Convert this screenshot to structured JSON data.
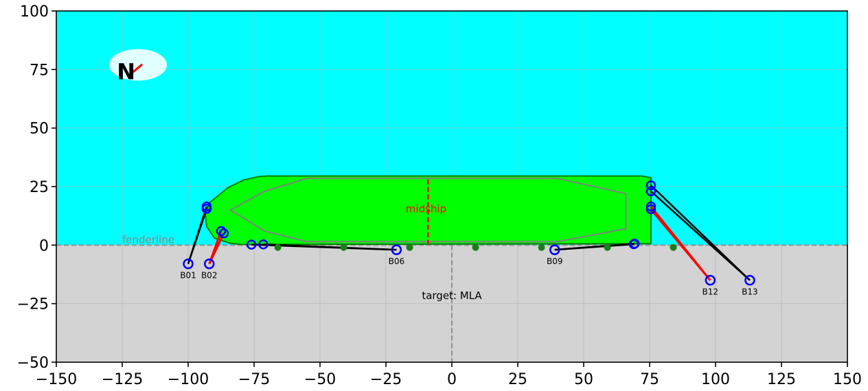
{
  "annotations": {
    "fenderline": "fenderline",
    "midship": "midship",
    "target": "target: MLA",
    "north": "N"
  },
  "colors": {
    "water": "#00ffff",
    "quay": "#d3d3d3",
    "hull": "#00ff00",
    "hull_edge": "#008000",
    "deck_outline": "#808080",
    "midship": "#ff0000",
    "line_black": "#000000",
    "line_red": "#ff0000",
    "bollard_ring": "#0000ff",
    "fender": "#1a7f1a",
    "north_ellipse": "#e0ffff",
    "north_arrow": "#ff0000"
  },
  "chart_data": {
    "type": "scatter",
    "xlim": [
      -150,
      150
    ],
    "ylim": [
      -50,
      100
    ],
    "xticks": [
      -150,
      -125,
      -100,
      -75,
      -50,
      -25,
      0,
      25,
      50,
      75,
      100,
      125,
      150
    ],
    "yticks": [
      -50,
      -25,
      0,
      25,
      50,
      75,
      100
    ],
    "grid": true,
    "fenderline_y": 0,
    "target_x": 0,
    "midship_x": -9,
    "hull_outline": [
      [
        -70,
        29.5
      ],
      [
        72,
        29.5
      ],
      [
        75.5,
        28.8
      ],
      [
        75.5,
        0.6
      ],
      [
        65,
        0.6
      ],
      [
        -80,
        0.3
      ],
      [
        -84,
        0.8
      ],
      [
        -90,
        3
      ],
      [
        -93,
        8
      ],
      [
        -93.5,
        13
      ],
      [
        -92,
        18
      ],
      [
        -85,
        24.5
      ],
      [
        -79,
        27.8
      ],
      [
        -73,
        29.3
      ]
    ],
    "deck_outline": [
      [
        -55,
        28.5
      ],
      [
        40,
        28.5
      ],
      [
        66,
        22
      ],
      [
        66,
        7
      ],
      [
        40,
        1.5
      ],
      [
        -55,
        1.5
      ],
      [
        -71,
        6
      ],
      [
        -84,
        15
      ],
      [
        -71,
        23
      ]
    ],
    "fenders": [
      {
        "x": -66,
        "y": -1
      },
      {
        "x": -41,
        "y": -1
      },
      {
        "x": -16,
        "y": -1
      },
      {
        "x": 9,
        "y": -1
      },
      {
        "x": 34,
        "y": -1
      },
      {
        "x": 59,
        "y": -1
      },
      {
        "x": 84,
        "y": -1
      }
    ],
    "bollards": [
      {
        "label": "B01",
        "x": -100,
        "y": -8
      },
      {
        "label": "B02",
        "x": -92,
        "y": -8
      },
      {
        "label": "B06",
        "x": -21,
        "y": -2
      },
      {
        "label": "B09",
        "x": 39,
        "y": -2
      },
      {
        "label": "B12",
        "x": 98,
        "y": -15
      },
      {
        "label": "B13",
        "x": 113,
        "y": -15
      }
    ],
    "fairleads": [
      {
        "x": -93,
        "y": 16.5
      },
      {
        "x": -93,
        "y": 15.5
      },
      {
        "x": -87.5,
        "y": 6
      },
      {
        "x": -86.5,
        "y": 5
      },
      {
        "x": -76,
        "y": 0.2
      },
      {
        "x": -71.5,
        "y": 0.3
      },
      {
        "x": 69,
        "y": 0.4
      },
      {
        "x": 69.3,
        "y": 0.6
      },
      {
        "x": 75.5,
        "y": 25.5
      },
      {
        "x": 75.5,
        "y": 23
      },
      {
        "x": 75.5,
        "y": 16.5
      },
      {
        "x": 75.5,
        "y": 15.3
      }
    ],
    "mooring_lines": [
      {
        "from": [
          -100,
          -8
        ],
        "to": [
          -93,
          16.5
        ],
        "color": "black"
      },
      {
        "from": [
          -100,
          -8
        ],
        "to": [
          -93,
          15.5
        ],
        "color": "black"
      },
      {
        "from": [
          -92,
          -8
        ],
        "to": [
          -87.5,
          6
        ],
        "color": "red"
      },
      {
        "from": [
          -92,
          -8
        ],
        "to": [
          -86.5,
          5
        ],
        "color": "red"
      },
      {
        "from": [
          -76,
          0.2
        ],
        "to": [
          -21,
          -2
        ],
        "color": "black"
      },
      {
        "from": [
          -71.5,
          0.3
        ],
        "to": [
          -21,
          -2
        ],
        "color": "black"
      },
      {
        "from": [
          69,
          0.4
        ],
        "to": [
          39,
          -2
        ],
        "color": "black"
      },
      {
        "from": [
          69.3,
          0.6
        ],
        "to": [
          39,
          -2
        ],
        "color": "black"
      },
      {
        "from": [
          75.5,
          25.5
        ],
        "to": [
          113,
          -15
        ],
        "color": "black"
      },
      {
        "from": [
          75.5,
          23
        ],
        "to": [
          113,
          -15
        ],
        "color": "black"
      },
      {
        "from": [
          75.5,
          16.5
        ],
        "to": [
          98,
          -15
        ],
        "color": "red"
      },
      {
        "from": [
          75.5,
          15.3
        ],
        "to": [
          98,
          -15
        ],
        "color": "red"
      }
    ],
    "north_indicator": {
      "x": -120,
      "y": 77,
      "angle_deg": 40
    }
  }
}
